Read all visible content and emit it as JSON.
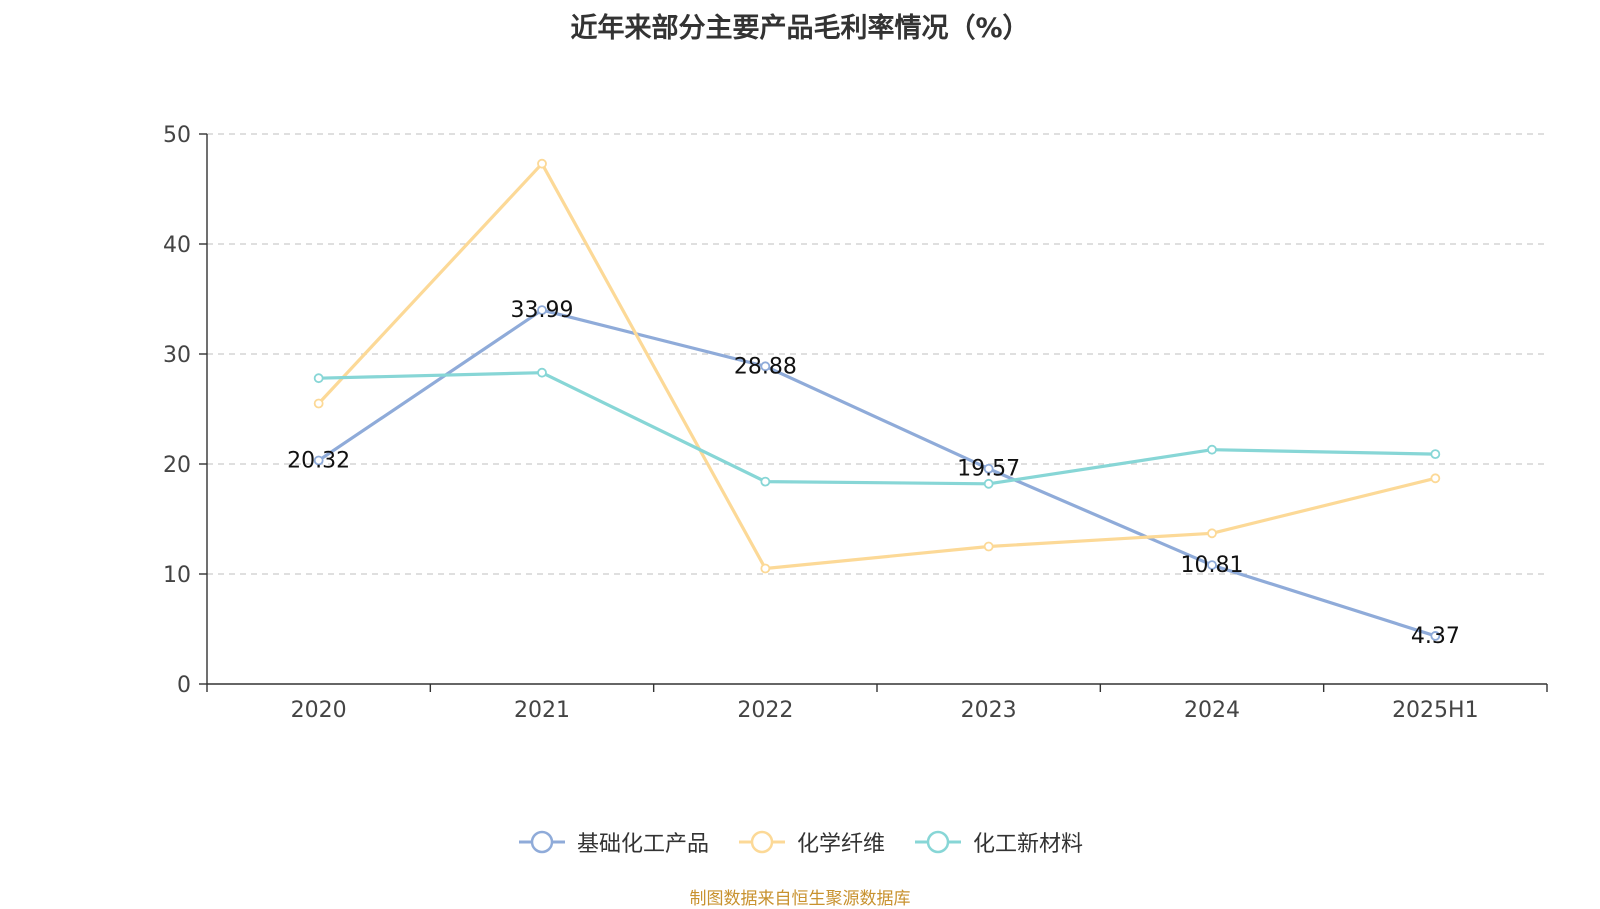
{
  "chart_data": {
    "type": "line",
    "title": "近年来部分主要产品毛利率情况（%）",
    "categories": [
      "2020",
      "2021",
      "2022",
      "2023",
      "2024",
      "2025H1"
    ],
    "ylim": [
      0,
      50
    ],
    "yticks": [
      0,
      10,
      20,
      30,
      40,
      50
    ],
    "grid": true,
    "legend_position": "bottom-center",
    "series": [
      {
        "name": "基础化工产品",
        "color": "#8fabd9",
        "values": [
          20.32,
          33.99,
          28.88,
          19.57,
          10.81,
          4.37
        ],
        "labels": [
          "20.32",
          "33.99",
          "28.88",
          "19.57",
          "10.81",
          "4.37"
        ]
      },
      {
        "name": "化学纤维",
        "color": "#fcd997",
        "values": [
          25.5,
          47.3,
          10.5,
          12.5,
          13.7,
          18.7
        ]
      },
      {
        "name": "化工新材料",
        "color": "#87d6d6",
        "values": [
          27.8,
          28.3,
          18.4,
          18.2,
          21.3,
          20.9
        ]
      }
    ]
  },
  "source": "制图数据来自恒生聚源数据库"
}
